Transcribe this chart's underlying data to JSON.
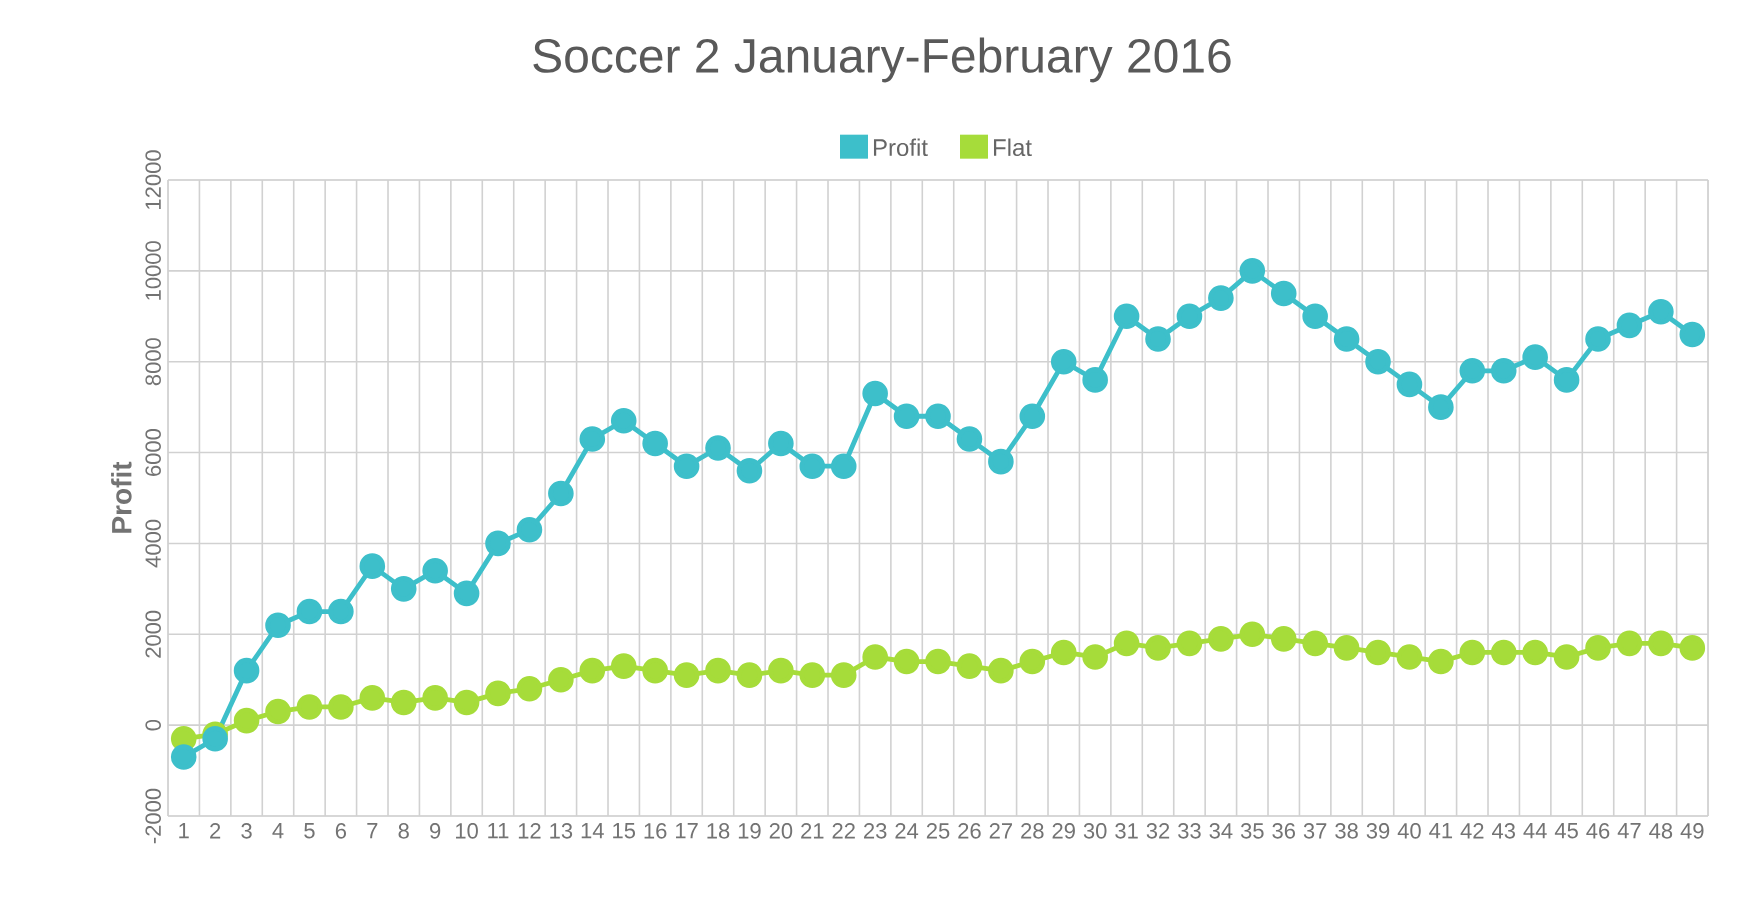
{
  "chart_data": {
    "type": "line",
    "title": "Soccer 2 January-February 2016",
    "ylabel": "Profit",
    "categories": [
      "1",
      "2",
      "3",
      "4",
      "5",
      "6",
      "7",
      "8",
      "9",
      "10",
      "11",
      "12",
      "13",
      "14",
      "15",
      "16",
      "17",
      "18",
      "19",
      "20",
      "21",
      "22",
      "23",
      "24",
      "25",
      "26",
      "27",
      "28",
      "29",
      "30",
      "31",
      "32",
      "33",
      "34",
      "35",
      "36",
      "37",
      "38",
      "39",
      "40",
      "41",
      "42",
      "43",
      "44",
      "45",
      "46",
      "47",
      "48",
      "49"
    ],
    "series": [
      {
        "name": "Profit",
        "color": "#3dbfca",
        "values": [
          -700,
          -300,
          1200,
          2200,
          2500,
          2500,
          3500,
          3000,
          3400,
          2900,
          4000,
          4300,
          5100,
          6300,
          6700,
          6200,
          5700,
          6100,
          5600,
          6200,
          5700,
          5700,
          7300,
          6800,
          6800,
          6300,
          5800,
          6800,
          8000,
          7600,
          9000,
          8500,
          9000,
          9400,
          10000,
          9500,
          9000,
          8500,
          8000,
          7500,
          7000,
          7800,
          7800,
          8100,
          7600,
          8500,
          8800,
          9100,
          8600
        ]
      },
      {
        "name": "Flat",
        "color": "#a6dc3a",
        "values": [
          -300,
          -200,
          100,
          300,
          400,
          400,
          600,
          500,
          600,
          500,
          700,
          800,
          1000,
          1200,
          1300,
          1200,
          1100,
          1200,
          1100,
          1200,
          1100,
          1100,
          1500,
          1400,
          1400,
          1300,
          1200,
          1400,
          1600,
          1500,
          1800,
          1700,
          1800,
          1900,
          2000,
          1900,
          1800,
          1700,
          1600,
          1500,
          1400,
          1600,
          1600,
          1600,
          1500,
          1700,
          1800,
          1800,
          1700
        ]
      }
    ],
    "ylim": [
      -2000,
      12000
    ],
    "yticks": [
      -2000,
      0,
      2000,
      4000,
      6000,
      8000,
      10000,
      12000
    ],
    "grid": true,
    "legend": "top",
    "marker": "circle",
    "line_style": "solid"
  }
}
